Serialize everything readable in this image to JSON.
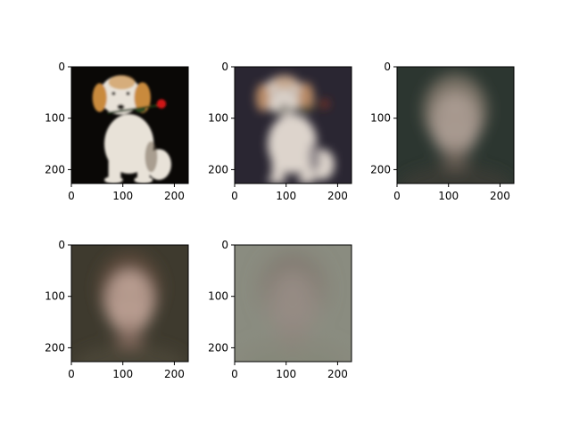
{
  "chart_data": [
    {
      "type": "image",
      "description_key": "dog-with-rose",
      "xticks": [
        0,
        100,
        200
      ],
      "yticks": [
        0,
        100,
        200
      ],
      "xlim": [
        0,
        227
      ],
      "ylim": [
        227,
        0
      ],
      "palette": {
        "bg": "#0a0806",
        "main": "#e8e2d8",
        "accent": "#c98a3e",
        "rose": "#d01818",
        "shadow": "#6a5a48"
      }
    },
    {
      "type": "image",
      "description_key": "blurry-dog-reconstruction",
      "xticks": [
        0,
        100,
        200
      ],
      "yticks": [
        0,
        100,
        200
      ],
      "xlim": [
        0,
        227
      ],
      "ylim": [
        227,
        0
      ],
      "palette": {
        "bg": "#2a2632",
        "main": "#ddd4cc",
        "accent": "#b88a66",
        "rose": "#7a3328",
        "shadow": "#4a4250"
      }
    },
    {
      "type": "image",
      "description_key": "mean-face-dark",
      "xticks": [
        0,
        100,
        200
      ],
      "yticks": [
        0,
        100,
        200
      ],
      "xlim": [
        0,
        227
      ],
      "ylim": [
        227,
        0
      ],
      "palette": {
        "bg": "#2c3630",
        "main": "#a89a90",
        "accent": "#7a7266",
        "rose": "#6e6258",
        "shadow": "#3a3c34"
      }
    },
    {
      "type": "image",
      "description_key": "mean-face-brown",
      "xticks": [
        0,
        100,
        200
      ],
      "yticks": [
        0,
        100,
        200
      ],
      "xlim": [
        0,
        227
      ],
      "ylim": [
        227,
        0
      ],
      "palette": {
        "bg": "#3e3a2e",
        "main": "#b89c90",
        "accent": "#5c4a3a",
        "rose": "#8a6e62",
        "shadow": "#4a4638"
      }
    },
    {
      "type": "image",
      "description_key": "mean-face-grey",
      "xticks": [
        0,
        100,
        200
      ],
      "yticks": [
        0,
        100,
        200
      ],
      "xlim": [
        0,
        227
      ],
      "ylim": [
        227,
        0
      ],
      "palette": {
        "bg": "#8a8c80",
        "main": "#9a8c86",
        "accent": "#7e746c",
        "rose": "#90827c",
        "shadow": "#848678"
      }
    }
  ]
}
